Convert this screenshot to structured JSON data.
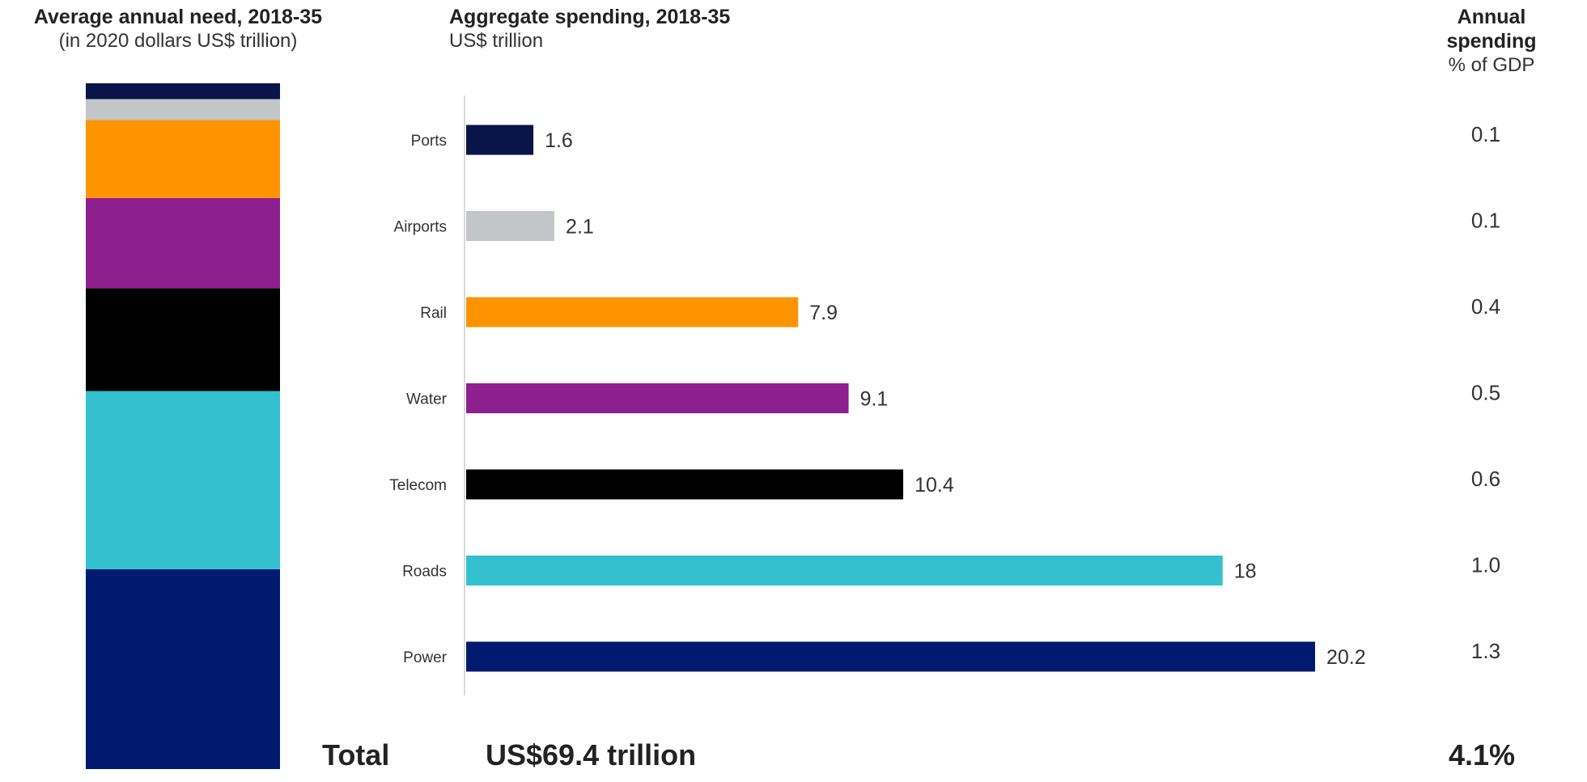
{
  "headers": {
    "left": {
      "title": "Average annual need, 2018-35",
      "subtitle": "(in 2020 dollars US$ trillion)"
    },
    "middle": {
      "title": "Aggregate spending, 2018-35",
      "subtitle": "US$ trillion"
    },
    "right": {
      "title": "Annual spending",
      "subtitle": "% of GDP"
    }
  },
  "chart_data": {
    "type": "bar",
    "orientation": "horizontal",
    "categories": [
      "Ports",
      "Airports",
      "Rail",
      "Water",
      "Telecom",
      "Roads",
      "Power"
    ],
    "values": [
      1.6,
      2.1,
      7.9,
      9.1,
      10.4,
      18,
      20.2
    ],
    "value_labels": [
      "1.6",
      "2.1",
      "7.9",
      "9.1",
      "10.4",
      "18",
      "20.2"
    ],
    "pct_of_gdp": [
      "0.1",
      "0.1",
      "0.4",
      "0.5",
      "0.6",
      "1.0",
      "1.3"
    ],
    "colors": [
      "#0a1448",
      "#c3c6c9",
      "#ff9400",
      "#8e1f8f",
      "#000000",
      "#33c0cf",
      "#001a70"
    ],
    "xlim": [
      0,
      22
    ],
    "grid": false,
    "legend": "none"
  },
  "total": {
    "label": "Total",
    "amount": "US$69.4 trillion",
    "pct": "4.1%"
  }
}
